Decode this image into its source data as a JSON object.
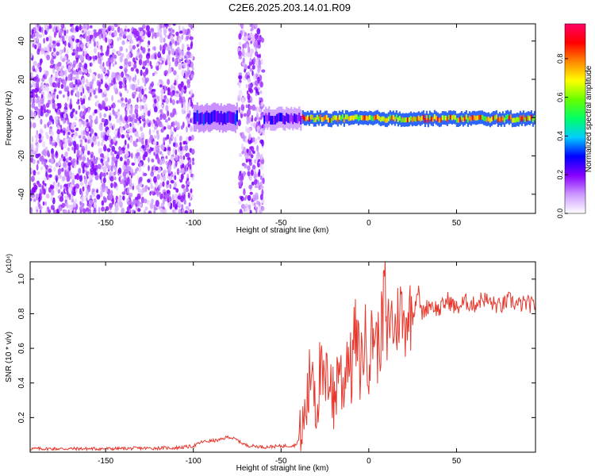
{
  "title": "C2E6.2025.203.14.01.R09",
  "chart_data": [
    {
      "type": "heatmap",
      "xlabel": "Height of straight line (km)",
      "ylabel": "Frequency (Hz)",
      "xlim": [
        -193,
        95
      ],
      "ylim": [
        -50,
        49
      ],
      "xticks": [
        -150,
        -100,
        -50,
        0,
        50
      ],
      "yticks": [
        -40,
        -20,
        0,
        20,
        40
      ],
      "colorbar": {
        "label": "Normalized spectral amplitude",
        "range": [
          0.0,
          0.98
        ],
        "ticks": [
          0.0,
          0.2,
          0.4,
          0.6,
          0.8
        ],
        "colors": [
          "#ffffff",
          "#cc99ff",
          "#8800ff",
          "#0000ff",
          "#00ccff",
          "#00ff66",
          "#66ff00",
          "#ffff00",
          "#ff8800",
          "#ff0000",
          "#ff0066"
        ]
      },
      "regions": [
        {
          "x": [
            -193,
            -100
          ],
          "amplitude": 0.1,
          "pattern": "broadband noise",
          "freq_band": [
            -50,
            49
          ]
        },
        {
          "x": [
            -100,
            -75
          ],
          "amplitude": 0.35,
          "pattern": "narrow band",
          "freq_band": [
            -6,
            6
          ]
        },
        {
          "x": [
            -74,
            -60
          ],
          "amplitude": 0.1,
          "pattern": "broadband noise",
          "freq_band": [
            -50,
            49
          ]
        },
        {
          "x": [
            -60,
            -38
          ],
          "amplitude": 0.3,
          "pattern": "narrow band",
          "freq_band": [
            -5,
            4
          ]
        },
        {
          "x": [
            -38,
            95
          ],
          "amplitude": 0.95,
          "pattern": "tone",
          "freq_band": [
            -3,
            2
          ]
        }
      ]
    },
    {
      "type": "line",
      "xlabel": "Height of straight line (km)",
      "ylabel": "SNR (10 * v/v)",
      "multiplier": "(x10⁴)",
      "xlim": [
        -193,
        95
      ],
      "ylim": [
        0,
        1.1
      ],
      "xticks": [
        -150,
        -100,
        -50,
        0,
        50
      ],
      "yticks": [
        0.2,
        0.4,
        0.6,
        0.8,
        1.0
      ],
      "color": "#e8382d",
      "series": [
        {
          "x": [
            -193,
            -150,
            -110,
            -100,
            -95,
            -85,
            -80,
            -75,
            -70,
            -60,
            -50,
            -42,
            -38,
            -35,
            -32,
            -30,
            -28,
            -25,
            -22,
            -20,
            -17,
            -15,
            -12,
            -10,
            -8,
            -5,
            -2,
            0,
            3,
            5,
            8,
            9,
            10,
            12,
            15,
            18,
            20,
            22,
            25,
            28,
            30,
            35,
            40,
            45,
            50,
            55,
            60,
            65,
            70,
            75,
            80,
            85,
            90,
            95
          ],
          "y": [
            0.02,
            0.02,
            0.025,
            0.035,
            0.06,
            0.07,
            0.09,
            0.07,
            0.04,
            0.03,
            0.035,
            0.04,
            0.1,
            0.3,
            0.55,
            0.25,
            0.45,
            0.35,
            0.5,
            0.25,
            0.55,
            0.35,
            0.6,
            0.45,
            0.7,
            0.5,
            0.65,
            0.55,
            0.72,
            0.6,
            0.75,
            1.08,
            0.6,
            0.8,
            0.7,
            0.85,
            0.72,
            0.82,
            0.78,
            0.95,
            0.8,
            0.86,
            0.82,
            0.88,
            0.83,
            0.87,
            0.85,
            0.89,
            0.86,
            0.84,
            0.88,
            0.85,
            0.86,
            0.84
          ]
        }
      ]
    }
  ]
}
